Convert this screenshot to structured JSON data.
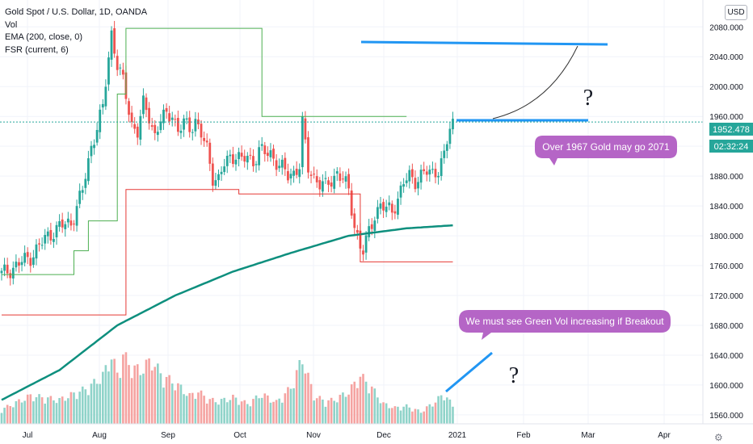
{
  "legend": {
    "symbol": "Gold Spot / U.S. Dollar, 1D, OANDA",
    "vol": "Vol",
    "ema": "EMA (200, close, 0)",
    "fsr": "FSR (current, 6)"
  },
  "currency_button": "USD",
  "price_tag": "1952.478",
  "countdown_tag": "02:32:24",
  "annotations": {
    "callout_top": "Over 1967 Gold may go 2071",
    "callout_bottom": "We must see Green Vol increasing  if Breakout",
    "question_top": "?",
    "question_bottom": "?"
  },
  "colors": {
    "up": "#26a69a",
    "down": "#ef5350",
    "ema": "#0e8f7e",
    "fsr_up": "#4caf50",
    "fsr_down": "#e53935",
    "drawing": "#2196f3",
    "callout": "#b565c6",
    "price_tag": "#26a69a"
  },
  "chart_data": {
    "type": "candlestick",
    "title": "Gold Spot / U.S. Dollar, 1D, OANDA",
    "y_axis": {
      "ticks": [
        "2080.000",
        "2040.000",
        "2000.000",
        "1960.000",
        "1920.000",
        "1880.000",
        "1840.000",
        "1800.000",
        "1760.000",
        "1720.000",
        "1680.000",
        "1640.000",
        "1600.000",
        "1560.000"
      ],
      "range": [
        1548,
        2116
      ]
    },
    "x_axis": {
      "ticks": [
        "Jul",
        "Aug",
        "Sep",
        "Oct",
        "Nov",
        "Dec",
        "2021",
        "Feb",
        "Mar",
        "Apr"
      ]
    },
    "last_price": 1952.478,
    "trend_shape": [
      [
        0,
        1748
      ],
      [
        5,
        1760
      ],
      [
        10,
        1772
      ],
      [
        16,
        1800
      ],
      [
        20,
        1812
      ],
      [
        24,
        1818
      ],
      [
        28,
        1860
      ],
      [
        31,
        1920
      ],
      [
        33,
        1946
      ],
      [
        35,
        1970
      ],
      [
        37,
        2040
      ],
      [
        38,
        2072
      ],
      [
        40,
        2030
      ],
      [
        42,
        2005
      ],
      [
        45,
        1950
      ],
      [
        47,
        1940
      ],
      [
        49,
        1975
      ],
      [
        51,
        1960
      ],
      [
        53,
        1935
      ],
      [
        55,
        1955
      ],
      [
        57,
        1960
      ],
      [
        59,
        1965
      ],
      [
        61,
        1940
      ],
      [
        63,
        1950
      ],
      [
        65,
        1945
      ],
      [
        67,
        1955
      ],
      [
        69,
        1935
      ],
      [
        71,
        1915
      ],
      [
        73,
        1880
      ],
      [
        75,
        1875
      ],
      [
        77,
        1895
      ],
      [
        79,
        1905
      ],
      [
        81,
        1910
      ],
      [
        83,
        1900
      ],
      [
        85,
        1905
      ],
      [
        87,
        1900
      ],
      [
        89,
        1915
      ],
      [
        91,
        1910
      ],
      [
        93,
        1910
      ],
      [
        95,
        1900
      ],
      [
        97,
        1890
      ],
      [
        99,
        1880
      ],
      [
        101,
        1885
      ],
      [
        103,
        1895
      ],
      [
        104,
        1950
      ],
      [
        106,
        1890
      ],
      [
        108,
        1880
      ],
      [
        110,
        1870
      ],
      [
        112,
        1865
      ],
      [
        114,
        1875
      ],
      [
        116,
        1885
      ],
      [
        118,
        1875
      ],
      [
        120,
        1860
      ],
      [
        122,
        1815
      ],
      [
        124,
        1785
      ],
      [
        125,
        1778
      ],
      [
        127,
        1805
      ],
      [
        129,
        1830
      ],
      [
        131,
        1840
      ],
      [
        133,
        1835
      ],
      [
        135,
        1835
      ],
      [
        137,
        1850
      ],
      [
        139,
        1870
      ],
      [
        141,
        1880
      ],
      [
        143,
        1875
      ],
      [
        145,
        1880
      ],
      [
        147,
        1885
      ],
      [
        149,
        1885
      ],
      [
        151,
        1890
      ],
      [
        153,
        1905
      ],
      [
        155,
        1945
      ],
      [
        156,
        1952
      ]
    ],
    "ema_200": [
      [
        0,
        1580
      ],
      [
        20,
        1620
      ],
      [
        40,
        1680
      ],
      [
        60,
        1720
      ],
      [
        80,
        1752
      ],
      [
        100,
        1777
      ],
      [
        120,
        1800
      ],
      [
        140,
        1810
      ],
      [
        156,
        1814
      ]
    ],
    "fsr_support": [
      [
        0,
        1748
      ],
      [
        25,
        1748
      ],
      [
        25,
        1780
      ],
      [
        30,
        1780
      ],
      [
        30,
        1820
      ],
      [
        40,
        1820
      ],
      [
        40,
        1990
      ],
      [
        43,
        1990
      ],
      [
        43,
        2078
      ],
      [
        90,
        2078
      ],
      [
        90,
        1960
      ],
      [
        140,
        1960
      ]
    ],
    "fsr_resistance": [
      [
        0,
        1694
      ],
      [
        43,
        1694
      ],
      [
        43,
        1862
      ],
      [
        82,
        1862
      ],
      [
        82,
        1856
      ],
      [
        124,
        1856
      ],
      [
        124,
        1765
      ],
      [
        156,
        1765
      ]
    ],
    "volume_shape": [
      [
        0,
        18
      ],
      [
        10,
        35
      ],
      [
        20,
        30
      ],
      [
        30,
        45
      ],
      [
        35,
        60
      ],
      [
        38,
        85
      ],
      [
        40,
        62
      ],
      [
        42,
        86
      ],
      [
        45,
        70
      ],
      [
        48,
        67
      ],
      [
        52,
        80
      ],
      [
        55,
        62
      ],
      [
        58,
        55
      ],
      [
        62,
        45
      ],
      [
        65,
        35
      ],
      [
        68,
        40
      ],
      [
        72,
        30
      ],
      [
        75,
        28
      ],
      [
        80,
        33
      ],
      [
        85,
        25
      ],
      [
        90,
        37
      ],
      [
        95,
        27
      ],
      [
        100,
        45
      ],
      [
        104,
        82
      ],
      [
        108,
        35
      ],
      [
        112,
        28
      ],
      [
        115,
        30
      ],
      [
        120,
        40
      ],
      [
        124,
        60
      ],
      [
        128,
        45
      ],
      [
        132,
        25
      ],
      [
        136,
        20
      ],
      [
        140,
        22
      ],
      [
        145,
        15
      ],
      [
        150,
        28
      ],
      [
        153,
        38
      ],
      [
        156,
        22
      ]
    ]
  }
}
